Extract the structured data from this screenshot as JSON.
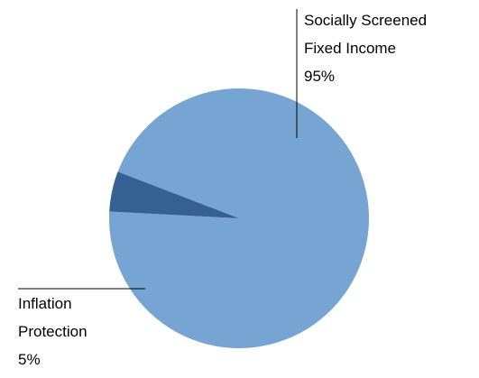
{
  "chart_data": {
    "type": "pie",
    "title": "",
    "slices": [
      {
        "label_lines": [
          "Socially Screened",
          "Fixed Income"
        ],
        "value": 95,
        "value_label": "95%",
        "color": "#76A5D4"
      },
      {
        "label_lines": [
          "Inflation",
          "Protection"
        ],
        "value": 5,
        "value_label": "5%",
        "color": "#356192"
      }
    ],
    "legend": "none"
  }
}
